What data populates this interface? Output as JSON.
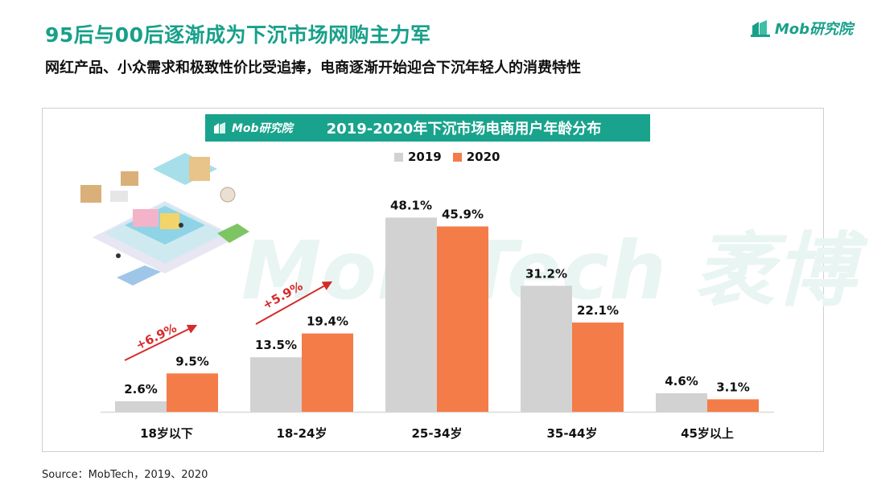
{
  "header": {
    "title": "95后与00后逐渐成为下沉市场网购主力军",
    "subtitle": "网红产品、小众需求和极致性价比受追捧，电商逐渐开始迎合下沉年轻人的消费特性",
    "logo_text": "Mob研究院"
  },
  "banner": {
    "logo_text": "Mob研究院"
  },
  "watermark": "Mob Tech 袤博",
  "source": "Source：MobTech，2019、2020",
  "colors": {
    "accent": "#19a38d",
    "series_2019": "#d2d2d2",
    "series_2020": "#f47c48",
    "arrow": "#d62a2a"
  },
  "chart_data": {
    "type": "bar",
    "title": "2019-2020年下沉市场电商用户年龄分布",
    "categories": [
      "18岁以下",
      "18-24岁",
      "25-34岁",
      "35-44岁",
      "45岁以上"
    ],
    "series": [
      {
        "name": "2019",
        "values": [
          2.6,
          13.5,
          48.1,
          31.2,
          4.6
        ],
        "labels": [
          "2.6%",
          "13.5%",
          "48.1%",
          "31.2%",
          "4.6%"
        ]
      },
      {
        "name": "2020",
        "values": [
          9.5,
          19.4,
          45.9,
          22.1,
          3.1
        ],
        "labels": [
          "9.5%",
          "19.4%",
          "45.9%",
          "22.1%",
          "3.1%"
        ]
      }
    ],
    "annotations": [
      "+6.9%",
      "+5.9%"
    ],
    "legend_position": "top-center",
    "ylim": [
      0,
      50
    ],
    "grid": false
  }
}
